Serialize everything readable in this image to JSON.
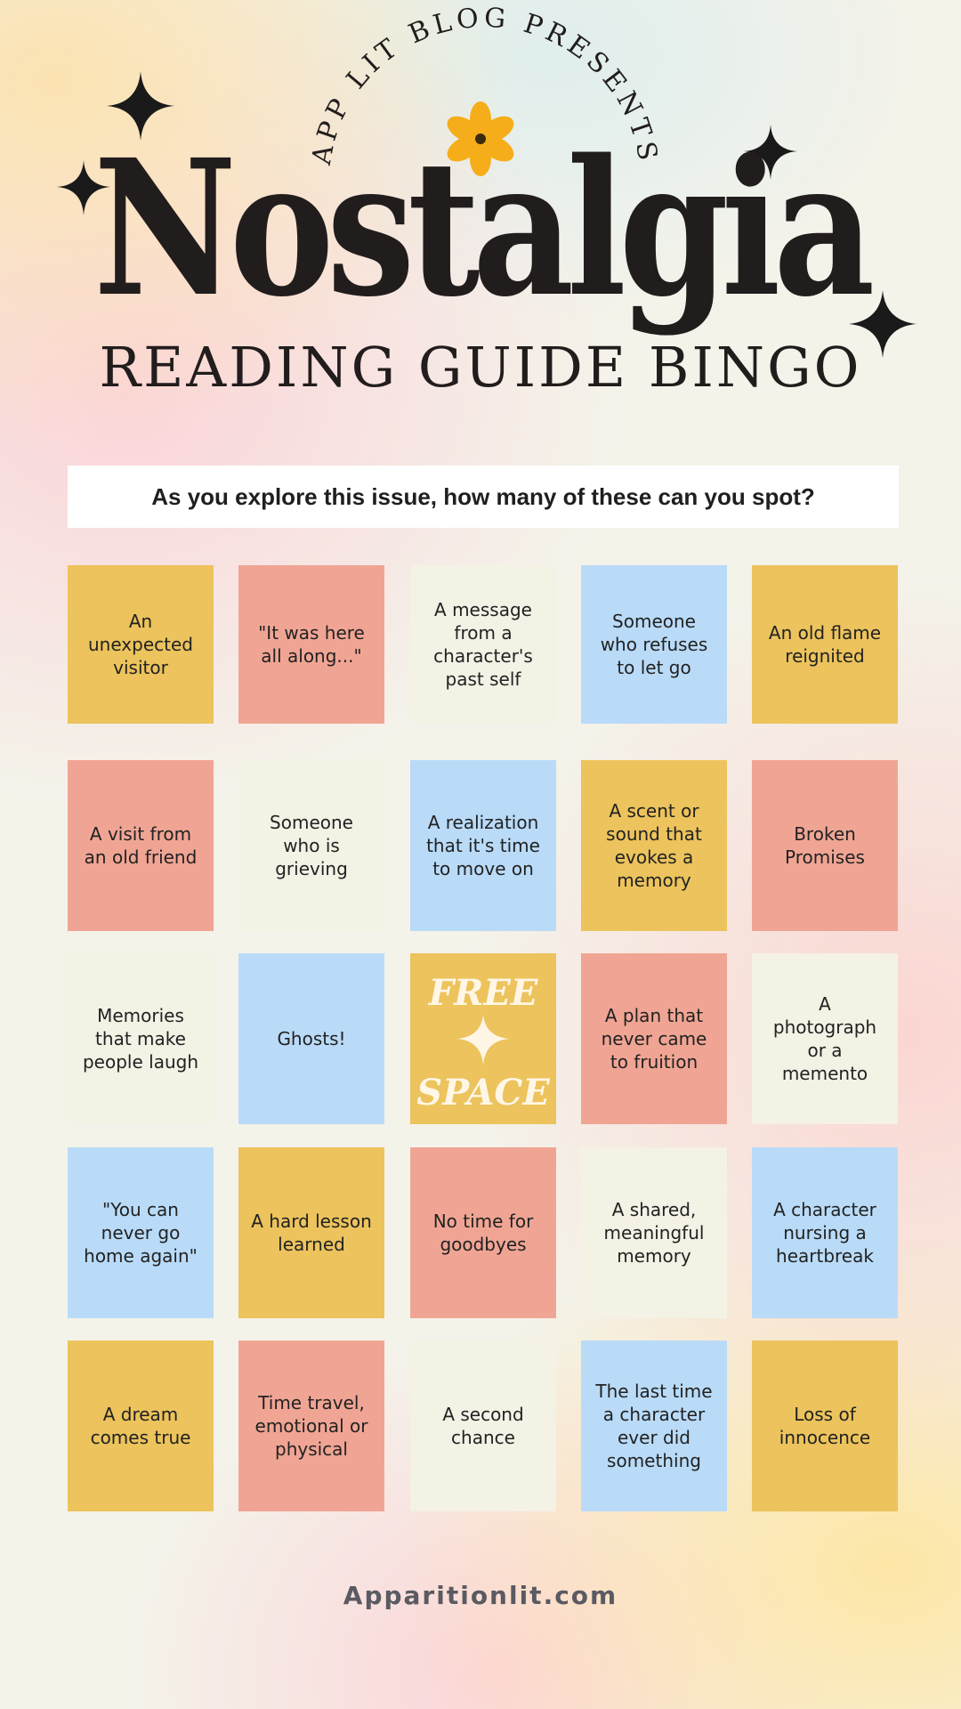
{
  "header": {
    "arc_text": "APP LIT BLOG PRESENTS",
    "title": "Nostalgia",
    "subtitle": "READING GUIDE BINGO",
    "accent_flower": "#f6ad1a",
    "icons": [
      "sparkle-icon",
      "flower-icon"
    ]
  },
  "prompt": "As you explore this issue, how many of these can you spot?",
  "colors": {
    "yellow": "#ecc35c",
    "salmon": "#f0a594",
    "cream": "#f4f1e5",
    "blue": "#b9dbf8"
  },
  "bingo": {
    "rows": [
      [
        {
          "text": "An unexpected visitor",
          "color": "yellow"
        },
        {
          "text": "\"It was here all along...\"",
          "color": "salmon"
        },
        {
          "text": "A message from a character's past self",
          "color": "cream"
        },
        {
          "text": "Someone who refuses to let go",
          "color": "blue"
        },
        {
          "text": "An old flame reignited",
          "color": "yellow"
        }
      ],
      [
        {
          "text": "A visit from an old friend",
          "color": "salmon"
        },
        {
          "text": "Someone who is grieving",
          "color": "cream"
        },
        {
          "text": "A realization that it's time to move on",
          "color": "blue"
        },
        {
          "text": "A scent or sound that evokes a memory",
          "color": "yellow"
        },
        {
          "text": "Broken Promises",
          "color": "salmon"
        }
      ],
      [
        {
          "text": "Memories that make people laugh",
          "color": "cream"
        },
        {
          "text": "Ghosts!",
          "color": "blue"
        },
        {
          "text": "",
          "color": "yellow",
          "free": true
        },
        {
          "text": "A plan that never came to fruition",
          "color": "salmon"
        },
        {
          "text": "A photograph or a memento",
          "color": "cream"
        }
      ],
      [
        {
          "text": "\"You can never go home again\"",
          "color": "blue"
        },
        {
          "text": "A hard lesson learned",
          "color": "yellow"
        },
        {
          "text": "No time for goodbyes",
          "color": "salmon"
        },
        {
          "text": "A shared, meaningful memory",
          "color": "cream"
        },
        {
          "text": "A character nursing a heartbreak",
          "color": "blue"
        }
      ],
      [
        {
          "text": "A dream comes true",
          "color": "yellow"
        },
        {
          "text": "Time travel, emotional or physical",
          "color": "salmon"
        },
        {
          "text": "A second chance",
          "color": "cream"
        },
        {
          "text": "The last time a character ever did something",
          "color": "blue"
        },
        {
          "text": "Loss of innocence",
          "color": "yellow"
        }
      ]
    ],
    "free_space": {
      "line1": "FREE",
      "line2": "SPACE"
    }
  },
  "footer": "Apparitionlit.com"
}
